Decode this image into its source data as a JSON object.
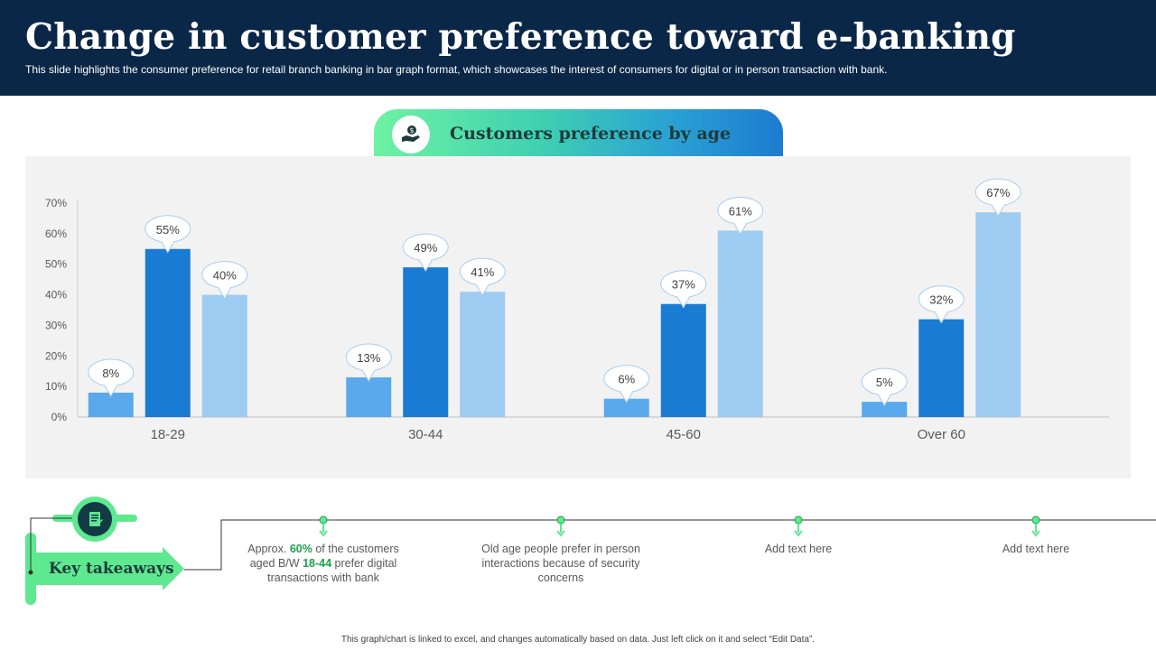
{
  "header": {
    "title": "Change in customer preference toward e-banking",
    "subtitle": "This slide highlights the consumer preference for retail branch banking in bar graph format, which showcases the interest of consumers for digital or in person transaction with bank."
  },
  "chart_tab": {
    "label": "Customers preference by age",
    "icon": "hand-money-icon"
  },
  "chart_data": {
    "type": "bar",
    "categories": [
      "18-29",
      "30-44",
      "45-60",
      "Over 60"
    ],
    "series": [
      {
        "values": [
          8,
          13,
          6,
          5
        ],
        "color": "#5aa9ec"
      },
      {
        "values": [
          55,
          49,
          37,
          32
        ],
        "color": "#1a7bd2"
      },
      {
        "values": [
          40,
          41,
          61,
          67
        ],
        "color": "#9ecbf2"
      }
    ],
    "ylim": [
      0,
      70
    ],
    "yticks": [
      "0%",
      "10%",
      "20%",
      "30%",
      "40%",
      "50%",
      "60%",
      "70%"
    ],
    "data_labels": [
      [
        "8%",
        "55%",
        "40%"
      ],
      [
        "13%",
        "49%",
        "41%"
      ],
      [
        "6%",
        "37%",
        "61%"
      ],
      [
        "5%",
        "32%",
        "67%"
      ]
    ],
    "grid": false,
    "legend": "none"
  },
  "takeaways": {
    "label": "Key takeaways",
    "icon": "document-icon",
    "items": [
      {
        "pre": "Approx. ",
        "hl1": "60%",
        "mid": " of the customers aged B/W ",
        "hl2": "18-44",
        "post": " prefer digital transactions with bank"
      },
      {
        "text": "Old age people prefer in person interactions because of security concerns"
      },
      {
        "text": "Add text here"
      },
      {
        "text": "Add text here"
      }
    ],
    "colors": {
      "accent": "#5ee890",
      "highlight": "#1aa14a"
    }
  },
  "footer": {
    "note": "This graph/chart is linked to excel, and changes automatically based on data. Just left click on it and select “Edit Data”."
  }
}
